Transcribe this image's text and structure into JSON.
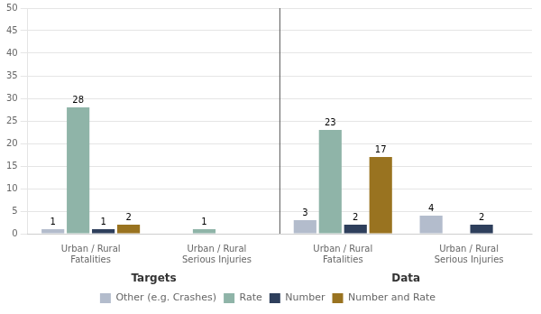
{
  "chart_data": {
    "type": "bar",
    "categories": [
      "Urban / Rural Fatalities",
      "Urban / Rural Serious Injuries",
      "Urban / Rural Fatalities",
      "Urban / Rural Serious Injuries"
    ],
    "series": [
      {
        "name": "Other (e.g. Crashes)",
        "color": "#b3bccc",
        "values": [
          1,
          0,
          3,
          4
        ],
        "value_labels": [
          "1",
          null,
          "3",
          "4"
        ]
      },
      {
        "name": "Rate",
        "color": "#8fb4a8",
        "values": [
          28,
          1,
          23,
          0
        ],
        "value_labels": [
          "28",
          "1",
          "23",
          null
        ]
      },
      {
        "name": "Number",
        "color": "#2e3f5c",
        "values": [
          1,
          0,
          2,
          2
        ],
        "value_labels": [
          "1",
          null,
          "2",
          "2"
        ]
      },
      {
        "name": "Number and Rate",
        "color": "#997320",
        "values": [
          2,
          0,
          17,
          0
        ],
        "value_labels": [
          "2",
          null,
          "17",
          null
        ]
      }
    ],
    "sections": [
      {
        "name": "Targets",
        "group_indices": [
          0,
          1
        ]
      },
      {
        "name": "Data",
        "group_indices": [
          2,
          3
        ]
      }
    ],
    "ylim": [
      0,
      50
    ],
    "yticks": [
      0,
      5,
      10,
      15,
      20,
      25,
      30,
      35,
      40,
      45,
      50
    ],
    "grid": true,
    "legend": "bottom",
    "data_labels": true
  }
}
